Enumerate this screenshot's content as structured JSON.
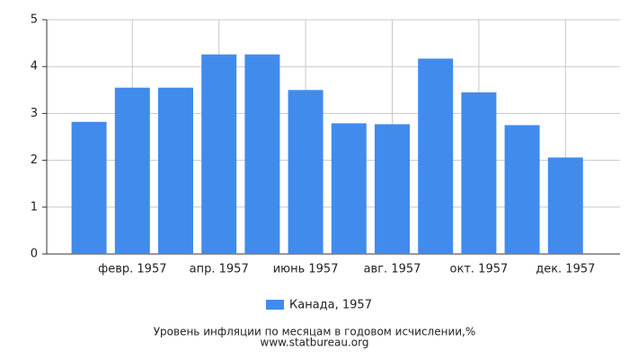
{
  "chart_data": {
    "type": "bar",
    "title": "Уровень инфляции по месяцам в годовом исчислении,%",
    "source": "www.statbureau.org",
    "categories": [
      null,
      "февр. 1957",
      null,
      "апр. 1957",
      null,
      "июнь 1957",
      null,
      "авг. 1957",
      null,
      "окт. 1957",
      null,
      "дек. 1957"
    ],
    "series": [
      {
        "name": "Канада, 1957",
        "color": "#418bec",
        "values": [
          2.82,
          3.55,
          3.55,
          4.26,
          4.26,
          3.5,
          2.79,
          2.77,
          4.17,
          3.45,
          2.75,
          2.06
        ]
      }
    ],
    "ylim": [
      0,
      5
    ],
    "yticks": [
      0,
      1,
      2,
      3,
      4,
      5
    ],
    "grid": true
  }
}
